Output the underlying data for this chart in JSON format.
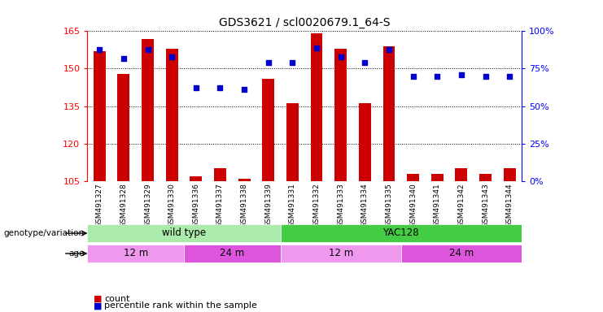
{
  "title": "GDS3621 / scl0020679.1_64-S",
  "samples": [
    "GSM491327",
    "GSM491328",
    "GSM491329",
    "GSM491330",
    "GSM491336",
    "GSM491337",
    "GSM491338",
    "GSM491339",
    "GSM491331",
    "GSM491332",
    "GSM491333",
    "GSM491334",
    "GSM491335",
    "GSM491340",
    "GSM491341",
    "GSM491342",
    "GSM491343",
    "GSM491344"
  ],
  "count_values": [
    157,
    148,
    162,
    158,
    107,
    110,
    106,
    146,
    136,
    164,
    158,
    136,
    159,
    108,
    108,
    110,
    108,
    110
  ],
  "percentile_values": [
    88,
    82,
    88,
    83,
    62,
    62,
    61,
    79,
    79,
    89,
    83,
    79,
    88,
    70,
    70,
    71,
    70,
    70
  ],
  "ylim_left": [
    105,
    165
  ],
  "ylim_right": [
    0,
    100
  ],
  "yticks_left": [
    105,
    120,
    135,
    150,
    165
  ],
  "yticks_right": [
    0,
    25,
    50,
    75,
    100
  ],
  "bar_color": "#cc0000",
  "dot_color": "#0000cc",
  "bar_bottom": 105,
  "genotype_groups": [
    {
      "label": "wild type",
      "start": 0,
      "end": 8,
      "color": "#aaeaaa"
    },
    {
      "label": "YAC128",
      "start": 8,
      "end": 18,
      "color": "#44cc44"
    }
  ],
  "age_groups": [
    {
      "label": "12 m",
      "start": 0,
      "end": 4,
      "color": "#ee99ee"
    },
    {
      "label": "24 m",
      "start": 4,
      "end": 8,
      "color": "#dd55dd"
    },
    {
      "label": "12 m",
      "start": 8,
      "end": 13,
      "color": "#ee99ee"
    },
    {
      "label": "24 m",
      "start": 13,
      "end": 18,
      "color": "#dd55dd"
    }
  ],
  "legend_items": [
    {
      "label": "count",
      "color": "#cc0000"
    },
    {
      "label": "percentile rank within the sample",
      "color": "#0000cc"
    }
  ]
}
